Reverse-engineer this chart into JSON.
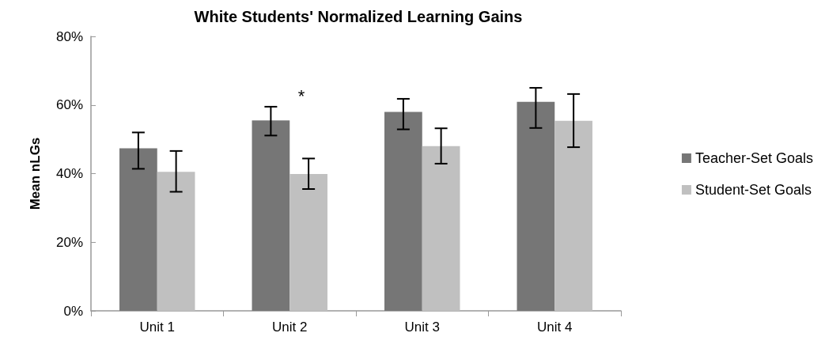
{
  "chart_data": {
    "type": "bar",
    "title": "White Students' Normalized Learning Gains",
    "ylabel": "Mean nLGs",
    "categories": [
      "Unit 1",
      "Unit 2",
      "Unit 3",
      "Unit 4"
    ],
    "series": [
      {
        "name": "Teacher-Set Goals",
        "color": "#767676",
        "values": [
          47.4,
          55.5,
          58.0,
          60.9
        ],
        "errors": [
          [
            41.4,
            52.0
          ],
          [
            51.1,
            59.5
          ],
          [
            52.9,
            61.8
          ],
          [
            53.3,
            65.0
          ]
        ]
      },
      {
        "name": "Student-Set Goals",
        "color": "#c0c0c0",
        "values": [
          40.5,
          39.9,
          48.0,
          55.4
        ],
        "errors": [
          [
            34.7,
            46.6
          ],
          [
            35.5,
            44.4
          ],
          [
            42.9,
            53.2
          ],
          [
            47.7,
            63.2
          ]
        ]
      }
    ],
    "ylim": [
      0,
      80
    ],
    "yticks": [
      {
        "value": 0,
        "label": "0%"
      },
      {
        "value": 20,
        "label": "20%"
      },
      {
        "value": 40,
        "label": "40%"
      },
      {
        "value": 60,
        "label": "60%"
      },
      {
        "value": 80,
        "label": "80%"
      }
    ],
    "annotations": [
      "*"
    ],
    "grid": false,
    "legend": "right"
  }
}
